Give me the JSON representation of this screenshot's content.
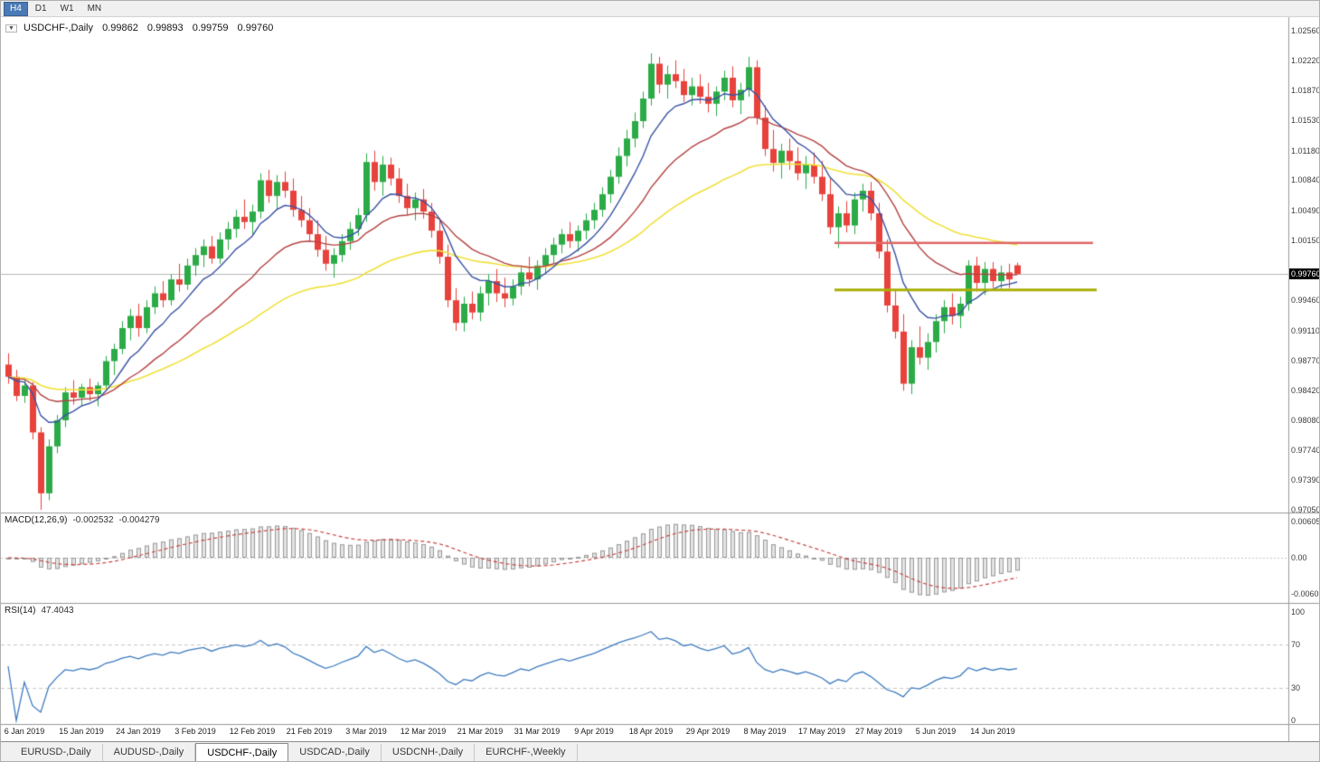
{
  "toolbar": {
    "timeframes": [
      {
        "label": "H4",
        "active": true
      },
      {
        "label": "D1",
        "active": false
      },
      {
        "label": "W1",
        "active": false
      },
      {
        "label": "MN",
        "active": false
      }
    ]
  },
  "icons": {
    "symbol_dropdown": "▼"
  },
  "chart": {
    "symbol_title": "USDCHF-,Daily",
    "ohlc": {
      "open": "0.99862",
      "high": "0.99893",
      "low": "0.99759",
      "close": "0.99760"
    },
    "price_badge": "0.99760",
    "current_price": 0.9976,
    "price_axis_labels": [
      "1.02560",
      "1.02220",
      "1.01870",
      "1.01530",
      "1.01180",
      "1.00840",
      "1.00490",
      "1.00150",
      "0.99460",
      "0.99110",
      "0.98770",
      "0.98420",
      "0.98080",
      "0.97740",
      "0.97390",
      "0.97050"
    ],
    "levels": {
      "resistance": {
        "price": 1.0012,
        "color": "#e06666"
      },
      "support": {
        "price": 0.9958,
        "color": "#a9b007"
      }
    },
    "colors": {
      "bull": "#2bab47",
      "bear": "#e8423c",
      "ma_fast": "#3a53a4",
      "ma_mid": "#b54343",
      "ma_slow": "#f0e13a",
      "current_price_line": "#b8b8b8",
      "macd_hist_fill": "#e4e4e4",
      "macd_hist_stroke": "#9a9a9a",
      "macd_signal": "#cc4444",
      "rsi_line": "#3f7cc0",
      "grid_dash": "#c8c8c8"
    }
  },
  "chart_data": {
    "type": "candlestick",
    "symbol": "USDCHF",
    "timeframe": "Daily",
    "dates_axis": [
      "6 Jan 2019",
      "15 Jan 2019",
      "24 Jan 2019",
      "3 Feb 2019",
      "12 Feb 2019",
      "21 Feb 2019",
      "3 Mar 2019",
      "12 Mar 2019",
      "21 Mar 2019",
      "31 Mar 2019",
      "9 Apr 2019",
      "18 Apr 2019",
      "29 Apr 2019",
      "8 May 2019",
      "17 May 2019",
      "27 May 2019",
      "5 Jun 2019",
      "14 Jun 2019"
    ],
    "price_range": [
      0.9705,
      1.0256
    ],
    "overlays": [
      {
        "name": "ema-fast",
        "period": 8,
        "color": "#3a53a4"
      },
      {
        "name": "ema-mid",
        "period": 20,
        "color": "#b54343"
      },
      {
        "name": "ema-slow",
        "period": 45,
        "color": "#f0e13a"
      }
    ],
    "candles": [
      [
        0.9872,
        0.9885,
        0.985,
        0.9858
      ],
      [
        0.9858,
        0.9866,
        0.983,
        0.9836
      ],
      [
        0.9836,
        0.9854,
        0.9828,
        0.9848
      ],
      [
        0.9848,
        0.9852,
        0.9786,
        0.9794
      ],
      [
        0.9794,
        0.98,
        0.9705,
        0.9724
      ],
      [
        0.9724,
        0.9786,
        0.9716,
        0.9778
      ],
      [
        0.9778,
        0.9814,
        0.977,
        0.9808
      ],
      [
        0.9808,
        0.9846,
        0.98,
        0.984
      ],
      [
        0.984,
        0.9854,
        0.9826,
        0.9834
      ],
      [
        0.9834,
        0.985,
        0.9824,
        0.9846
      ],
      [
        0.9846,
        0.9856,
        0.983,
        0.9838
      ],
      [
        0.9838,
        0.9852,
        0.9824,
        0.9848
      ],
      [
        0.9848,
        0.9882,
        0.9842,
        0.9876
      ],
      [
        0.9876,
        0.9896,
        0.986,
        0.989
      ],
      [
        0.989,
        0.9922,
        0.9884,
        0.9914
      ],
      [
        0.9914,
        0.9936,
        0.99,
        0.9928
      ],
      [
        0.9928,
        0.9942,
        0.9904,
        0.9914
      ],
      [
        0.9914,
        0.9946,
        0.9908,
        0.9938
      ],
      [
        0.9938,
        0.9962,
        0.993,
        0.9954
      ],
      [
        0.9954,
        0.9968,
        0.9938,
        0.9946
      ],
      [
        0.9946,
        0.9976,
        0.994,
        0.997
      ],
      [
        0.997,
        0.9988,
        0.9956,
        0.9964
      ],
      [
        0.9964,
        0.9994,
        0.9958,
        0.9986
      ],
      [
        0.9986,
        1.0006,
        0.9974,
        0.9998
      ],
      [
        0.9998,
        1.0016,
        0.9984,
        1.0008
      ],
      [
        1.0008,
        1.002,
        0.9988,
        0.9994
      ],
      [
        0.9994,
        1.0024,
        0.9988,
        1.0016
      ],
      [
        1.0016,
        1.0036,
        1.0004,
        1.0028
      ],
      [
        1.0028,
        1.005,
        1.0018,
        1.0042
      ],
      [
        1.0042,
        1.0062,
        1.0028,
        1.0036
      ],
      [
        1.0036,
        1.0056,
        1.0022,
        1.0048
      ],
      [
        1.0048,
        1.0092,
        1.004,
        1.0084
      ],
      [
        1.0084,
        1.0096,
        1.0058,
        1.0066
      ],
      [
        1.0066,
        1.009,
        1.005,
        1.0082
      ],
      [
        1.0082,
        1.0094,
        1.0064,
        1.0072
      ],
      [
        1.0072,
        1.0086,
        1.0042,
        1.005
      ],
      [
        1.005,
        1.0066,
        1.003,
        1.0038
      ],
      [
        1.0038,
        1.0052,
        1.0014,
        1.0022
      ],
      [
        1.0022,
        1.0038,
        0.9996,
        1.0004
      ],
      [
        1.0004,
        1.002,
        0.998,
        0.9988
      ],
      [
        0.9988,
        1.0006,
        0.9972,
        0.9998
      ],
      [
        0.9998,
        1.0022,
        0.999,
        1.0014
      ],
      [
        1.0014,
        1.0036,
        1.0004,
        1.0028
      ],
      [
        1.0028,
        1.0052,
        1.002,
        1.0044
      ],
      [
        1.0044,
        1.0115,
        1.0036,
        1.0105
      ],
      [
        1.0105,
        1.0118,
        1.0072,
        1.0082
      ],
      [
        1.0082,
        1.0112,
        1.0066,
        1.0102
      ],
      [
        1.0102,
        1.011,
        1.0078,
        1.0086
      ],
      [
        1.0086,
        1.0098,
        1.0058,
        1.0066
      ],
      [
        1.0066,
        1.008,
        1.0044,
        1.0052
      ],
      [
        1.0052,
        1.007,
        1.0038,
        1.0062
      ],
      [
        1.0062,
        1.0074,
        1.004,
        1.0048
      ],
      [
        1.0048,
        1.0058,
        1.0018,
        1.0026
      ],
      [
        1.0026,
        1.004,
        0.9988,
        0.9996
      ],
      [
        0.9996,
        1.001,
        0.9938,
        0.9946
      ],
      [
        0.9946,
        0.996,
        0.9911,
        0.992
      ],
      [
        0.992,
        0.995,
        0.991,
        0.9942
      ],
      [
        0.9942,
        0.9956,
        0.9924,
        0.9932
      ],
      [
        0.9932,
        0.9962,
        0.9922,
        0.9954
      ],
      [
        0.9954,
        0.9976,
        0.994,
        0.9968
      ],
      [
        0.9968,
        0.9982,
        0.9944,
        0.9954
      ],
      [
        0.9954,
        0.9972,
        0.9938,
        0.9948
      ],
      [
        0.9948,
        0.997,
        0.994,
        0.9962
      ],
      [
        0.9962,
        0.9986,
        0.9952,
        0.9978
      ],
      [
        0.9978,
        0.9996,
        0.9962,
        0.997
      ],
      [
        0.997,
        0.9992,
        0.9958,
        0.9986
      ],
      [
        0.9986,
        1.0006,
        0.9976,
        0.9998
      ],
      [
        0.9998,
        1.0018,
        0.9988,
        1.001
      ],
      [
        1.001,
        1.0028,
        1.0,
        1.0022
      ],
      [
        1.0022,
        1.0036,
        1.0006,
        1.0014
      ],
      [
        1.0014,
        1.0032,
        1.0002,
        1.0026
      ],
      [
        1.0026,
        1.0046,
        1.0016,
        1.0038
      ],
      [
        1.0038,
        1.0058,
        1.0028,
        1.005
      ],
      [
        1.005,
        1.0076,
        1.0042,
        1.0068
      ],
      [
        1.0068,
        1.0096,
        1.0058,
        1.0088
      ],
      [
        1.0088,
        1.0122,
        1.008,
        1.0112
      ],
      [
        1.0112,
        1.0142,
        1.01,
        1.0132
      ],
      [
        1.0132,
        1.0162,
        1.0122,
        1.0152
      ],
      [
        1.0152,
        1.0186,
        1.0144,
        1.0178
      ],
      [
        1.0178,
        1.023,
        1.017,
        1.0218
      ],
      [
        1.0218,
        1.0226,
        1.0184,
        1.0194
      ],
      [
        1.0194,
        1.0216,
        1.0178,
        1.0206
      ],
      [
        1.0206,
        1.0222,
        1.019,
        1.0198
      ],
      [
        1.0198,
        1.0212,
        1.0174,
        1.0182
      ],
      [
        1.0182,
        1.0202,
        1.017,
        1.0192
      ],
      [
        1.0192,
        1.0206,
        1.0172,
        1.018
      ],
      [
        1.018,
        1.0196,
        1.0162,
        1.0172
      ],
      [
        1.0172,
        1.0192,
        1.0158,
        1.0186
      ],
      [
        1.0186,
        1.021,
        1.0176,
        1.0202
      ],
      [
        1.0202,
        1.0215,
        1.0168,
        1.0176
      ],
      [
        1.0176,
        1.0196,
        1.016,
        1.0188
      ],
      [
        1.0188,
        1.0226,
        1.018,
        1.0214
      ],
      [
        1.0214,
        1.0222,
        1.0148,
        1.0156
      ],
      [
        1.0156,
        1.017,
        1.0112,
        1.012
      ],
      [
        1.012,
        1.0142,
        1.0094,
        1.0104
      ],
      [
        1.0104,
        1.0126,
        1.0086,
        1.0118
      ],
      [
        1.0118,
        1.0132,
        1.0096,
        1.0106
      ],
      [
        1.0106,
        1.0122,
        1.0084,
        1.0092
      ],
      [
        1.0092,
        1.0112,
        1.0074,
        1.0102
      ],
      [
        1.0102,
        1.0116,
        1.008,
        1.0088
      ],
      [
        1.0088,
        1.0106,
        1.006,
        1.0068
      ],
      [
        1.0068,
        1.0086,
        1.0022,
        1.003
      ],
      [
        1.003,
        1.0054,
        1.0006,
        1.0046
      ],
      [
        1.0046,
        1.006,
        1.0024,
        1.0032
      ],
      [
        1.0032,
        1.007,
        1.0022,
        1.0062
      ],
      [
        1.0062,
        1.008,
        1.0048,
        1.0072
      ],
      [
        1.0072,
        1.0082,
        1.0038,
        1.0046
      ],
      [
        1.0046,
        1.0058,
        0.9994,
        1.0002
      ],
      [
        1.0002,
        1.0016,
        0.9932,
        0.994
      ],
      [
        0.994,
        0.9958,
        0.9902,
        0.991
      ],
      [
        0.991,
        0.993,
        0.9842,
        0.985
      ],
      [
        0.985,
        0.99,
        0.9838,
        0.9892
      ],
      [
        0.9892,
        0.9916,
        0.9872,
        0.988
      ],
      [
        0.988,
        0.9908,
        0.9866,
        0.9898
      ],
      [
        0.9898,
        0.993,
        0.9886,
        0.9922
      ],
      [
        0.9922,
        0.9946,
        0.9908,
        0.9938
      ],
      [
        0.9938,
        0.9954,
        0.9918,
        0.9928
      ],
      [
        0.9928,
        0.995,
        0.9914,
        0.9942
      ],
      [
        0.9942,
        0.9992,
        0.9934,
        0.9986
      ],
      [
        0.9986,
        0.9996,
        0.9956,
        0.9966
      ],
      [
        0.9966,
        0.999,
        0.9952,
        0.9982
      ],
      [
        0.9982,
        0.999,
        0.996,
        0.9968
      ],
      [
        0.9968,
        0.9986,
        0.9958,
        0.9978
      ],
      [
        0.9978,
        0.9988,
        0.996,
        0.997
      ],
      [
        0.99862,
        0.99893,
        0.99759,
        0.9976
      ]
    ]
  },
  "macd_panel": {
    "label": "MACD(12,26,9)",
    "value_main": "-0.002532",
    "value_signal": "-0.004279",
    "params": {
      "fast": 12,
      "slow": 26,
      "signal": 9
    },
    "axis": [
      "0.006058",
      "0.00",
      "-0.006096"
    ]
  },
  "rsi_panel": {
    "label": "RSI(14)",
    "value": "47.4043",
    "period": 14,
    "levels": [
      70,
      30
    ],
    "axis": [
      "100",
      "70",
      "30",
      "0"
    ]
  },
  "tabs": [
    {
      "label": "EURUSD-,Daily",
      "active": false
    },
    {
      "label": "AUDUSD-,Daily",
      "active": false
    },
    {
      "label": "USDCHF-,Daily",
      "active": true
    },
    {
      "label": "USDCAD-,Daily",
      "active": false
    },
    {
      "label": "USDCNH-,Daily",
      "active": false
    },
    {
      "label": "EURCHF-,Weekly",
      "active": false
    }
  ]
}
